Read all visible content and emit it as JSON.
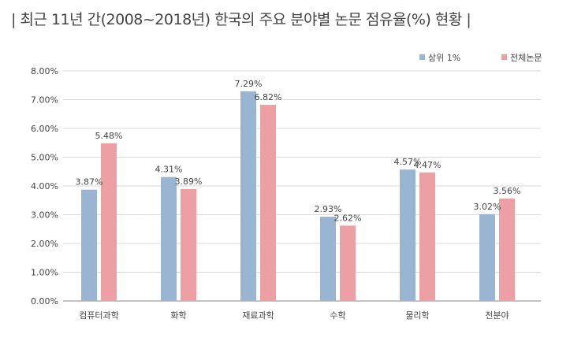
{
  "title": "| 최근 11년 간(2008~2018년) 한국의 주요 분야별 논문 점유율(%) 현황 |",
  "chart_data": {
    "type": "bar",
    "categories": [
      "컴퓨터과학",
      "화학",
      "재료과학",
      "수학",
      "물리학",
      "전분야"
    ],
    "series": [
      {
        "name": "상위 1%",
        "values": [
          3.87,
          4.31,
          7.29,
          2.93,
          4.57,
          3.02
        ],
        "labels": [
          "3.87%",
          "4.31%",
          "7.29%",
          "2.93%",
          "4.57%",
          "3.02%"
        ],
        "color": "#9ab5d1"
      },
      {
        "name": "전체논문",
        "values": [
          5.48,
          3.89,
          6.82,
          2.62,
          4.47,
          3.56
        ],
        "labels": [
          "5.48%",
          "3.89%",
          "6.82%",
          "2.62%",
          "4.47%",
          "3.56%"
        ],
        "color": "#eda0a3"
      }
    ],
    "ylim": [
      0,
      8
    ],
    "yticks": [
      "0.00%",
      "1.00%",
      "2.00%",
      "3.00%",
      "4.00%",
      "5.00%",
      "6.00%",
      "7.00%",
      "8.00%"
    ],
    "grid": true,
    "legend": "top-right"
  }
}
